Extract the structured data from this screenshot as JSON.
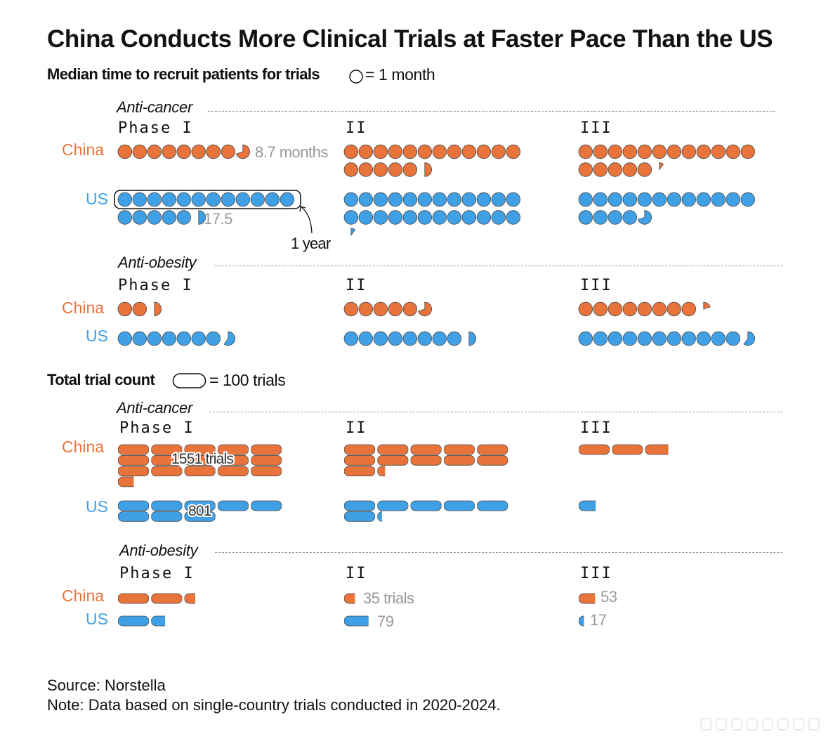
{
  "title": "China Conducts More Clinical Trials at Faster Pace Than the US",
  "recruit_heading": "Median time to recruit patients for trials",
  "recruit_legend": "= 1 month",
  "count_heading": "Total trial count",
  "count_legend": "= 100 trials",
  "groups": {
    "cancer": "Anti-cancer",
    "obesity": "Anti-obesity"
  },
  "phases": [
    "Phase I",
    "II",
    "III"
  ],
  "countries": {
    "china": "China",
    "us": "US"
  },
  "colors": {
    "china": "#e8743b",
    "us": "#3fa0e6",
    "annotation": "#999999"
  },
  "annotations": {
    "china_cancer_phase1_months": "8.7 months",
    "us_cancer_phase1_months": "17.5",
    "one_year": "1 year",
    "china_cancer_phase1_trials": "1551 trials",
    "us_cancer_phase1_trials": "801",
    "china_obesity_phase2_trials": "35 trials",
    "us_obesity_phase2_trials": "79",
    "china_obesity_phase3_trials": "53",
    "us_obesity_phase3_trials": "17"
  },
  "source": "Source: Norstella",
  "note": "Note: Data based on single-country trials conducted in 2020-2024.",
  "chart_data": [
    {
      "type": "pictogram",
      "title": "Median time to recruit patients for trials",
      "unit": "months",
      "categories": [
        "Phase I",
        "II",
        "III"
      ],
      "panels": [
        {
          "group": "Anti-cancer",
          "series": [
            {
              "name": "China",
              "values": [
                8.7,
                17.5,
                17.1
              ]
            },
            {
              "name": "US",
              "values": [
                17.5,
                24.1,
                16.7
              ]
            }
          ]
        },
        {
          "group": "Anti-obesity",
          "series": [
            {
              "name": "China",
              "values": [
                2.5,
                5.7,
                8.2
              ]
            },
            {
              "name": "US",
              "values": [
                7.6,
                8.5,
                11.6
              ]
            }
          ]
        }
      ]
    },
    {
      "type": "pictogram",
      "title": "Total trial count",
      "unit": "trials",
      "categories": [
        "Phase I",
        "II",
        "III"
      ],
      "panels": [
        {
          "group": "Anti-cancer",
          "series": [
            {
              "name": "China",
              "values": [
                1551,
                1125,
                275
              ]
            },
            {
              "name": "US",
              "values": [
                801,
                615,
                55
              ]
            }
          ]
        },
        {
          "group": "Anti-obesity",
          "series": [
            {
              "name": "China",
              "values": [
                235,
                35,
                53
              ]
            },
            {
              "name": "US",
              "values": [
                145,
                79,
                17
              ]
            }
          ]
        }
      ]
    }
  ]
}
